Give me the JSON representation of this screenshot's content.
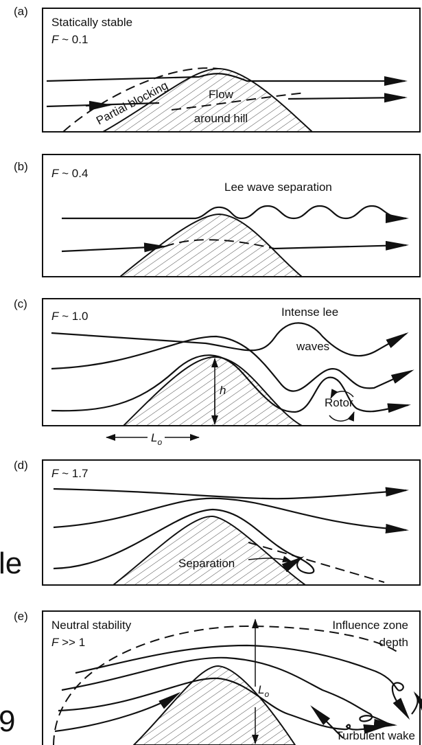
{
  "panels": [
    {
      "label": "(a)",
      "stability": "Statically stable",
      "froude": {
        "variable": "F",
        "relation": "~ 0.1"
      },
      "annotations": [
        "Partial blocking",
        "Flow",
        "around hill"
      ]
    },
    {
      "label": "(b)",
      "froude": {
        "variable": "F",
        "relation": "~ 0.4"
      },
      "annotations": [
        "Lee wave separation"
      ]
    },
    {
      "label": "(c)",
      "froude": {
        "variable": "F",
        "relation": "~ 1.0"
      },
      "annotations": [
        "Intense lee",
        "waves",
        "h",
        "Rotor"
      ],
      "length": {
        "symbol": "L",
        "subscript": "o"
      }
    },
    {
      "label": "(d)",
      "froude": {
        "variable": "F",
        "relation": "~ 1.7"
      },
      "annotations": [
        "Separation"
      ]
    },
    {
      "label": "(e)",
      "stability": "Neutral stability",
      "froude": {
        "variable": "F",
        "relation": ">> 1"
      },
      "annotations": [
        "Influence zone",
        "depth",
        "Turbulent wake"
      ],
      "length": {
        "symbol": "L",
        "subscript": "o"
      }
    }
  ],
  "margin_fragments": [
    "le",
    "9"
  ]
}
